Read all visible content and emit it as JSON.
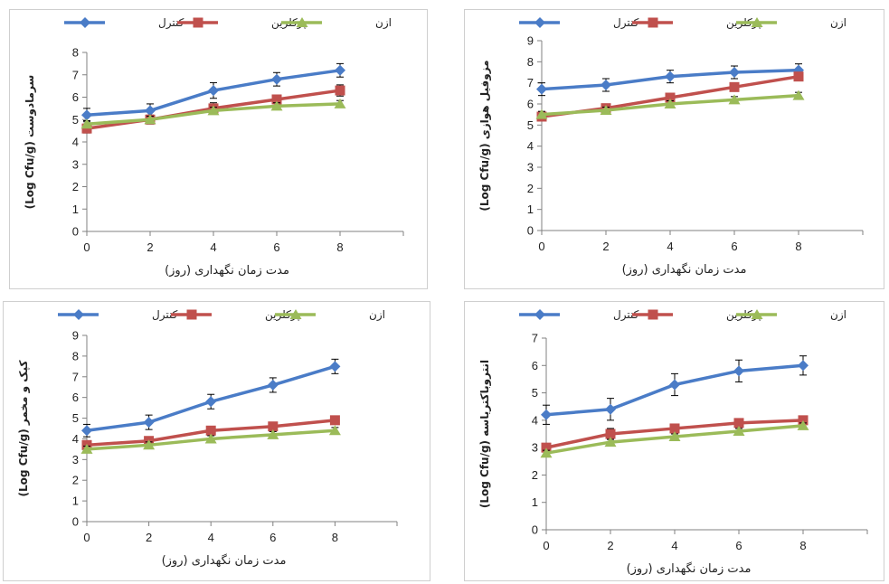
{
  "colors": {
    "control": "#4a7cc7",
    "perchlorine": "#c0504d",
    "ozone": "#9bbb59",
    "errorbar": "#000000",
    "axis": "#808080"
  },
  "chart_data": [
    {
      "type": "line",
      "ylabel": "سرمادوست (Log Cfu/g)",
      "xlabel": "مدت زمان نگهداری (روز)",
      "x": [
        0,
        2,
        4,
        6,
        8
      ],
      "xlim": [
        0,
        10
      ],
      "ylim": [
        0,
        8
      ],
      "yticks": [
        0,
        1,
        2,
        3,
        4,
        5,
        6,
        7,
        8
      ],
      "legend": "top",
      "grid": false,
      "series": [
        {
          "name": "کنترل",
          "values": [
            5.2,
            5.4,
            6.3,
            6.8,
            7.2
          ],
          "errors": [
            0.3,
            0.3,
            0.35,
            0.3,
            0.3
          ]
        },
        {
          "name": "پرکلرین",
          "values": [
            4.6,
            5.0,
            5.5,
            5.9,
            6.3
          ],
          "errors": [
            0.2,
            0.2,
            0.25,
            0.2,
            0.25
          ]
        },
        {
          "name": "ازن",
          "values": [
            4.8,
            5.0,
            5.4,
            5.6,
            5.7
          ],
          "errors": [
            0.15,
            0.15,
            0.15,
            0.15,
            0.15
          ]
        }
      ]
    },
    {
      "type": "line",
      "ylabel": "مزوفیل هوازی (Log Cfu/g)",
      "xlabel": "مدت زمان نگهداری (روز)",
      "x": [
        0,
        2,
        4,
        6,
        8
      ],
      "xlim": [
        0,
        10
      ],
      "ylim": [
        0,
        9
      ],
      "yticks": [
        0,
        1,
        2,
        3,
        4,
        5,
        6,
        7,
        8,
        9
      ],
      "legend": "top",
      "grid": false,
      "series": [
        {
          "name": "کنترل",
          "values": [
            6.7,
            6.9,
            7.3,
            7.5,
            7.6
          ],
          "errors": [
            0.3,
            0.3,
            0.3,
            0.3,
            0.3
          ]
        },
        {
          "name": "پرکلرین",
          "values": [
            5.4,
            5.8,
            6.3,
            6.8,
            7.3
          ],
          "errors": [
            0.2,
            0.2,
            0.2,
            0.2,
            0.2
          ]
        },
        {
          "name": "ازن",
          "values": [
            5.5,
            5.7,
            6.0,
            6.2,
            6.4
          ],
          "errors": [
            0.15,
            0.15,
            0.15,
            0.15,
            0.15
          ]
        }
      ]
    },
    {
      "type": "line",
      "ylabel": "کپک و مخمر (Log Cfu/g)",
      "xlabel": "مدت زمان نگهداری (روز)",
      "x": [
        0,
        2,
        4,
        6,
        8
      ],
      "xlim": [
        0,
        10
      ],
      "ylim": [
        0,
        9
      ],
      "yticks": [
        0,
        1,
        2,
        3,
        4,
        5,
        6,
        7,
        8,
        9
      ],
      "legend": "top",
      "grid": false,
      "series": [
        {
          "name": "کنترل",
          "values": [
            4.4,
            4.8,
            5.8,
            6.6,
            7.5
          ],
          "errors": [
            0.3,
            0.35,
            0.35,
            0.35,
            0.35
          ]
        },
        {
          "name": "پرکلرین",
          "values": [
            3.7,
            3.9,
            4.4,
            4.6,
            4.9
          ],
          "errors": [
            0.2,
            0.2,
            0.2,
            0.2,
            0.2
          ]
        },
        {
          "name": "ازن",
          "values": [
            3.5,
            3.7,
            4.0,
            4.2,
            4.4
          ],
          "errors": [
            0.15,
            0.15,
            0.15,
            0.15,
            0.15
          ]
        }
      ]
    },
    {
      "type": "line",
      "ylabel": "انتروباکتریاسه (Log Cfu/g)",
      "xlabel": "مدت زمان نگهداری (روز)",
      "x": [
        0,
        2,
        4,
        6,
        8
      ],
      "xlim": [
        0,
        10
      ],
      "ylim": [
        0,
        7
      ],
      "yticks": [
        0,
        1,
        2,
        3,
        4,
        5,
        6,
        7
      ],
      "legend": "top",
      "grid": false,
      "series": [
        {
          "name": "کنترل",
          "values": [
            4.2,
            4.4,
            5.3,
            5.8,
            6.0
          ],
          "errors": [
            0.35,
            0.4,
            0.4,
            0.4,
            0.35
          ]
        },
        {
          "name": "پرکلرین",
          "values": [
            3.0,
            3.5,
            3.7,
            3.9,
            4.0
          ],
          "errors": [
            0.15,
            0.2,
            0.15,
            0.15,
            0.15
          ]
        },
        {
          "name": "ازن",
          "values": [
            2.8,
            3.2,
            3.4,
            3.6,
            3.8
          ],
          "errors": [
            0.1,
            0.1,
            0.1,
            0.1,
            0.1
          ]
        }
      ]
    }
  ]
}
